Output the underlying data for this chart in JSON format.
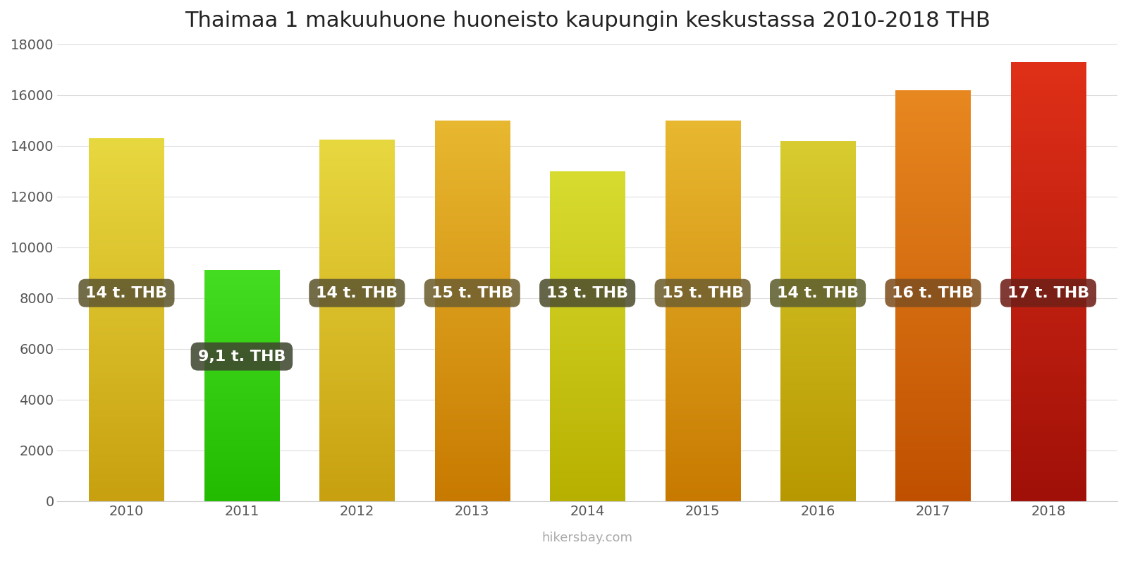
{
  "title": "Thaimaa 1 makuuhuone huoneisto kaupungin keskustassa 2010-2018 THB",
  "years": [
    2010,
    2011,
    2012,
    2013,
    2014,
    2015,
    2016,
    2017,
    2018
  ],
  "values": [
    14300,
    9100,
    14250,
    15000,
    13000,
    15000,
    14200,
    16200,
    17300
  ],
  "labels": [
    "14 t. THB",
    "9,1 t. THB",
    "14 t. THB",
    "15 t. THB",
    "13 t. THB",
    "15 t. THB",
    "14 t. THB",
    "16 t. THB",
    "17 t. THB"
  ],
  "bar_colors_top": [
    "#e8d840",
    "#44dd22",
    "#e8d840",
    "#e8b830",
    "#d8dc30",
    "#e8b830",
    "#d8cc30",
    "#e88820",
    "#e03018"
  ],
  "bar_colors_bot": [
    "#c8a010",
    "#22bb00",
    "#c8a010",
    "#c87a00",
    "#b8b000",
    "#c87a00",
    "#b89800",
    "#c05000",
    "#a01008"
  ],
  "label_box_colors": [
    "#605830",
    "#404830",
    "#605830",
    "#706030",
    "#505030",
    "#706030",
    "#606030",
    "#805020",
    "#702018"
  ],
  "ylim": [
    0,
    18000
  ],
  "yticks": [
    0,
    2000,
    4000,
    6000,
    8000,
    10000,
    12000,
    14000,
    16000,
    18000
  ],
  "background_color": "#ffffff",
  "label_text_color": "#ffffff",
  "watermark": "hikersbay.com",
  "title_fontsize": 22,
  "label_fontsize": 16,
  "tick_fontsize": 14,
  "watermark_fontsize": 13,
  "bar_width": 0.65
}
